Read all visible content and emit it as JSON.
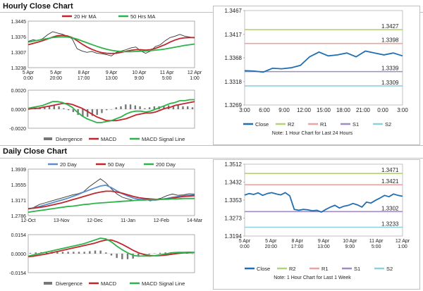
{
  "sections": [
    {
      "title": "Hourly Close Chart"
    },
    {
      "title": "Daily Close Chart"
    }
  ],
  "colors": {
    "close": "#1f6fb2",
    "ma20": "#c0262c",
    "ma50": "#2db34a",
    "day200": "#2db34a",
    "R2": "#b5d17a",
    "R1": "#eea3a3",
    "S1": "#a08cc4",
    "S2": "#8fd0df",
    "macd": "#2db34a",
    "signal": "#c0262c",
    "divergence": "#777777"
  },
  "chart_data": [
    {
      "id": "hourly_price",
      "type": "line",
      "legend": [
        "20 Hr MA",
        "50 Hrs MA"
      ],
      "ylim": [
        1.3238,
        1.3445
      ],
      "y_ticks": [
        "1.3445",
        "1.3376",
        "1.3307",
        "1.3238"
      ],
      "x_ticks": [
        "5 Apr\n0:00",
        "5 Apr\n20:00",
        "8 Apr\n17:00",
        "9 Apr\n13:00",
        "10 Apr\n9:00",
        "11 Apr\n5:00",
        "12 Apr\n1:00"
      ],
      "series": [
        {
          "name": "Close",
          "values": [
            1.3355,
            1.3362,
            1.3358,
            1.3368,
            1.3385,
            1.3398,
            1.3392,
            1.3387,
            1.3378,
            1.3366,
            1.3322,
            1.3312,
            1.3306,
            1.331,
            1.3302,
            1.33,
            1.3296,
            1.329,
            1.3306,
            1.3312,
            1.3318,
            1.3326,
            1.333,
            1.3312,
            1.3302,
            1.3312,
            1.3332,
            1.334,
            1.3358,
            1.3372,
            1.3378,
            1.3386,
            1.3378,
            1.3374,
            1.337
          ]
        },
        {
          "name": "20 Hr MA",
          "values": [
            1.334,
            1.3346,
            1.3352,
            1.3358,
            1.3366,
            1.3374,
            1.338,
            1.3382,
            1.3379,
            1.3372,
            1.3358,
            1.3343,
            1.333,
            1.332,
            1.3311,
            1.3305,
            1.3302,
            1.3301,
            1.3302,
            1.3306,
            1.3311,
            1.3315,
            1.3318,
            1.3318,
            1.3316,
            1.3318,
            1.3324,
            1.3332,
            1.3341,
            1.3352,
            1.3361,
            1.3368,
            1.3371,
            1.3372,
            1.3372
          ]
        },
        {
          "name": "50 Hrs MA",
          "values": [
            1.3352,
            1.3356,
            1.336,
            1.3364,
            1.3368,
            1.3372,
            1.3374,
            1.3375,
            1.3374,
            1.3371,
            1.3365,
            1.3357,
            1.3349,
            1.3341,
            1.3333,
            1.3326,
            1.332,
            1.3315,
            1.3312,
            1.331,
            1.3309,
            1.3309,
            1.331,
            1.3311,
            1.3312,
            1.3314,
            1.3316,
            1.3318,
            1.3321,
            1.3325,
            1.3329,
            1.3333,
            1.3337,
            1.334,
            1.3343
          ]
        }
      ]
    },
    {
      "id": "hourly_macd",
      "type": "line",
      "ylim": [
        -0.002,
        0.002
      ],
      "y_ticks": [
        "0.0020",
        "0.0000",
        "-0.0020"
      ],
      "legend": [
        "Divergence",
        "MACD",
        "MACD Signal Line"
      ],
      "series": [
        {
          "name": "MACD",
          "values": [
            0.0001,
            0.0002,
            0.0003,
            0.0004,
            0.0006,
            0.0008,
            0.0008,
            0.0007,
            0.0005,
            0.0002,
            -0.0003,
            -0.0007,
            -0.001,
            -0.0012,
            -0.0014,
            -0.0014,
            -0.0013,
            -0.0012,
            -0.001,
            -0.0008,
            -0.0005,
            -0.0003,
            -0.0002,
            -0.0002,
            -0.0003,
            -0.0002,
            0.0,
            0.0002,
            0.0004,
            0.0006,
            0.0007,
            0.0009,
            0.0009,
            0.001,
            0.001
          ]
        },
        {
          "name": "MACD Signal Line",
          "values": [
            0.0,
            0.0001,
            0.0001,
            0.0002,
            0.0003,
            0.0004,
            0.0005,
            0.0006,
            0.0006,
            0.0005,
            0.0003,
            0.0001,
            -0.0002,
            -0.0005,
            -0.0008,
            -0.001,
            -0.0012,
            -0.0012,
            -0.0012,
            -0.0011,
            -0.001,
            -0.0008,
            -0.0006,
            -0.0005,
            -0.0004,
            -0.0004,
            -0.0003,
            -0.0001,
            0.0001,
            0.0002,
            0.0004,
            0.0005,
            0.0006,
            0.0007,
            0.0008
          ]
        },
        {
          "name": "Divergence",
          "values": [
            0.0001,
            0.0001,
            0.0002,
            0.0002,
            0.0003,
            0.0004,
            0.0003,
            0.0001,
            -0.0001,
            -0.0003,
            -0.0006,
            -0.0008,
            -0.0008,
            -0.0007,
            -0.0006,
            -0.0004,
            -0.0001,
            0.0,
            0.0002,
            0.0003,
            0.0005,
            0.0005,
            0.0004,
            0.0003,
            0.0001,
            0.0002,
            0.0003,
            0.0003,
            0.0003,
            0.0004,
            0.0003,
            0.0004,
            0.0003,
            0.0003,
            0.0002
          ]
        }
      ]
    },
    {
      "id": "hourly_pivot",
      "type": "line",
      "ylim": [
        1.3269,
        1.3467
      ],
      "y_ticks": [
        "1.3467",
        "1.3417",
        "1.3368",
        "1.3318",
        "1.3269"
      ],
      "x_ticks": [
        "3:00",
        "6:00",
        "9:00",
        "12:00",
        "15:00",
        "18:00",
        "21:00",
        "0:00",
        "3:00"
      ],
      "levels": [
        {
          "name": "R2",
          "value": 1.3427,
          "label": "1.3427"
        },
        {
          "name": "R1",
          "value": 1.3398,
          "label": "1.3398"
        },
        {
          "name": "S1",
          "value": 1.3339,
          "label": "1.3339"
        },
        {
          "name": "S2",
          "value": 1.3309,
          "label": "1.3309"
        }
      ],
      "series": [
        {
          "name": "Close",
          "values": [
            1.3341,
            1.334,
            1.3338,
            1.3346,
            1.3345,
            1.3347,
            1.3352,
            1.337,
            1.338,
            1.3372,
            1.3374,
            1.3378,
            1.337,
            1.3382,
            1.3378,
            1.3374,
            1.3378,
            1.3372
          ]
        }
      ],
      "legend": [
        "Close",
        "R2",
        "R1",
        "S1",
        "S2"
      ],
      "note": "Note: 1 Hour Chart for Last 24 Hours"
    },
    {
      "id": "daily_price",
      "type": "line",
      "legend": [
        "20 Day",
        "50 Day",
        "200 Day"
      ],
      "ylim": [
        1.2786,
        1.3939
      ],
      "y_ticks": [
        "1.3939",
        "1.3555",
        "1.3171",
        "1.2786"
      ],
      "x_ticks": [
        "12-Oct",
        "13-Nov",
        "12-Dec",
        "11-Jan",
        "12-Feb",
        "14-Mar"
      ],
      "series": [
        {
          "name": "Close",
          "values": [
            1.294,
            1.299,
            1.306,
            1.31,
            1.314,
            1.318,
            1.322,
            1.326,
            1.33,
            1.333,
            1.338,
            1.35,
            1.36,
            1.37,
            1.36,
            1.345,
            1.332,
            1.324,
            1.32,
            1.316,
            1.318,
            1.32,
            1.315,
            1.319,
            1.322,
            1.328,
            1.332,
            1.329,
            1.33,
            1.333,
            1.332
          ]
        },
        {
          "name": "20 Day",
          "values": [
            1.295,
            1.298,
            1.301,
            1.305,
            1.309,
            1.313,
            1.317,
            1.321,
            1.326,
            1.331,
            1.337,
            1.342,
            1.347,
            1.352,
            1.354,
            1.348,
            1.34,
            1.333,
            1.327,
            1.322,
            1.319,
            1.318,
            1.317,
            1.317,
            1.319,
            1.321,
            1.324,
            1.326,
            1.328,
            1.329,
            1.33
          ]
        },
        {
          "name": "50 Day",
          "values": [
            1.296,
            1.297,
            1.299,
            1.301,
            1.304,
            1.307,
            1.31,
            1.314,
            1.318,
            1.322,
            1.326,
            1.33,
            1.334,
            1.337,
            1.339,
            1.339,
            1.337,
            1.334,
            1.33,
            1.326,
            1.323,
            1.321,
            1.32,
            1.319,
            1.319,
            1.32,
            1.322,
            1.324,
            1.326,
            1.327,
            1.328
          ]
        },
        {
          "name": "200 Day",
          "values": [
            1.287,
            1.289,
            1.291,
            1.293,
            1.295,
            1.297,
            1.299,
            1.301,
            1.302,
            1.304,
            1.306,
            1.307,
            1.309,
            1.31,
            1.311,
            1.312,
            1.313,
            1.314,
            1.315,
            1.316,
            1.317,
            1.317,
            1.318,
            1.318,
            1.319,
            1.319,
            1.32,
            1.32,
            1.321,
            1.321,
            1.321
          ]
        }
      ]
    },
    {
      "id": "daily_macd",
      "type": "line",
      "ylim": [
        -0.0154,
        0.0154
      ],
      "y_ticks": [
        "0.0154",
        "0.0000",
        "-0.0154"
      ],
      "legend": [
        "Divergence",
        "MACD",
        "MACD Signal Line"
      ],
      "series": [
        {
          "name": "MACD",
          "values": [
            -0.002,
            -0.001,
            0.0,
            0.001,
            0.002,
            0.003,
            0.004,
            0.005,
            0.006,
            0.007,
            0.008,
            0.0095,
            0.011,
            0.0125,
            0.012,
            0.0095,
            0.006,
            0.003,
            0.0005,
            -0.0015,
            -0.002,
            -0.0018,
            -0.002,
            -0.0015,
            -0.0008,
            0.0,
            0.0008,
            0.001,
            0.001,
            0.0012,
            0.001
          ]
        },
        {
          "name": "MACD Signal Line",
          "values": [
            -0.0025,
            -0.002,
            -0.0012,
            -0.0005,
            0.0005,
            0.0015,
            0.0025,
            0.0035,
            0.0045,
            0.0055,
            0.0065,
            0.0075,
            0.0085,
            0.01,
            0.011,
            0.011,
            0.0095,
            0.0075,
            0.005,
            0.0025,
            0.0005,
            -0.0008,
            -0.0015,
            -0.0017,
            -0.0015,
            -0.001,
            -0.0004,
            0.0002,
            0.0006,
            0.0008,
            0.0009
          ]
        },
        {
          "name": "Divergence",
          "values": [
            0.0005,
            0.001,
            0.0012,
            0.0015,
            0.0015,
            0.0015,
            0.0015,
            0.0015,
            0.0015,
            0.0015,
            0.0015,
            0.002,
            0.0025,
            0.0025,
            0.001,
            -0.0015,
            -0.0035,
            -0.0045,
            -0.0045,
            -0.004,
            -0.0025,
            -0.001,
            -0.0005,
            0.0002,
            0.0007,
            0.001,
            0.0012,
            0.0008,
            0.0004,
            0.0004,
            0.0001
          ]
        }
      ]
    },
    {
      "id": "daily_pivot",
      "type": "line",
      "ylim": [
        1.3194,
        1.3512
      ],
      "y_ticks": [
        "1.3512",
        "1.3432",
        "1.3353",
        "1.3273",
        "1.3194"
      ],
      "x_ticks": [
        "5 Apr\n0:00",
        "5 Apr\n20:00",
        "8 Apr\n17:00",
        "9 Apr\n13:00",
        "10 Apr\n9:00",
        "11 Apr\n5:00",
        "12 Apr\n1:00"
      ],
      "levels": [
        {
          "name": "R2",
          "value": 1.3471,
          "label": "1.3471"
        },
        {
          "name": "R1",
          "value": 1.3421,
          "label": "1.3421"
        },
        {
          "name": "S1",
          "value": 1.3302,
          "label": "1.3302"
        },
        {
          "name": "S2",
          "value": 1.3233,
          "label": "1.3233"
        }
      ],
      "series": [
        {
          "name": "Close",
          "values": [
            1.3375,
            1.3382,
            1.3378,
            1.3385,
            1.3374,
            1.3382,
            1.3386,
            1.338,
            1.3376,
            1.3386,
            1.3372,
            1.3312,
            1.3308,
            1.3312,
            1.331,
            1.3306,
            1.3308,
            1.33,
            1.3312,
            1.3322,
            1.333,
            1.3318,
            1.3326,
            1.333,
            1.3338,
            1.3332,
            1.3322,
            1.3344,
            1.334,
            1.3352,
            1.3362,
            1.3374,
            1.3368,
            1.338,
            1.3374,
            1.337
          ]
        }
      ],
      "legend": [
        "Close",
        "R2",
        "R1",
        "S1",
        "S2"
      ],
      "note": "Note: 1 Hour Chart for Last 1 Week"
    }
  ]
}
